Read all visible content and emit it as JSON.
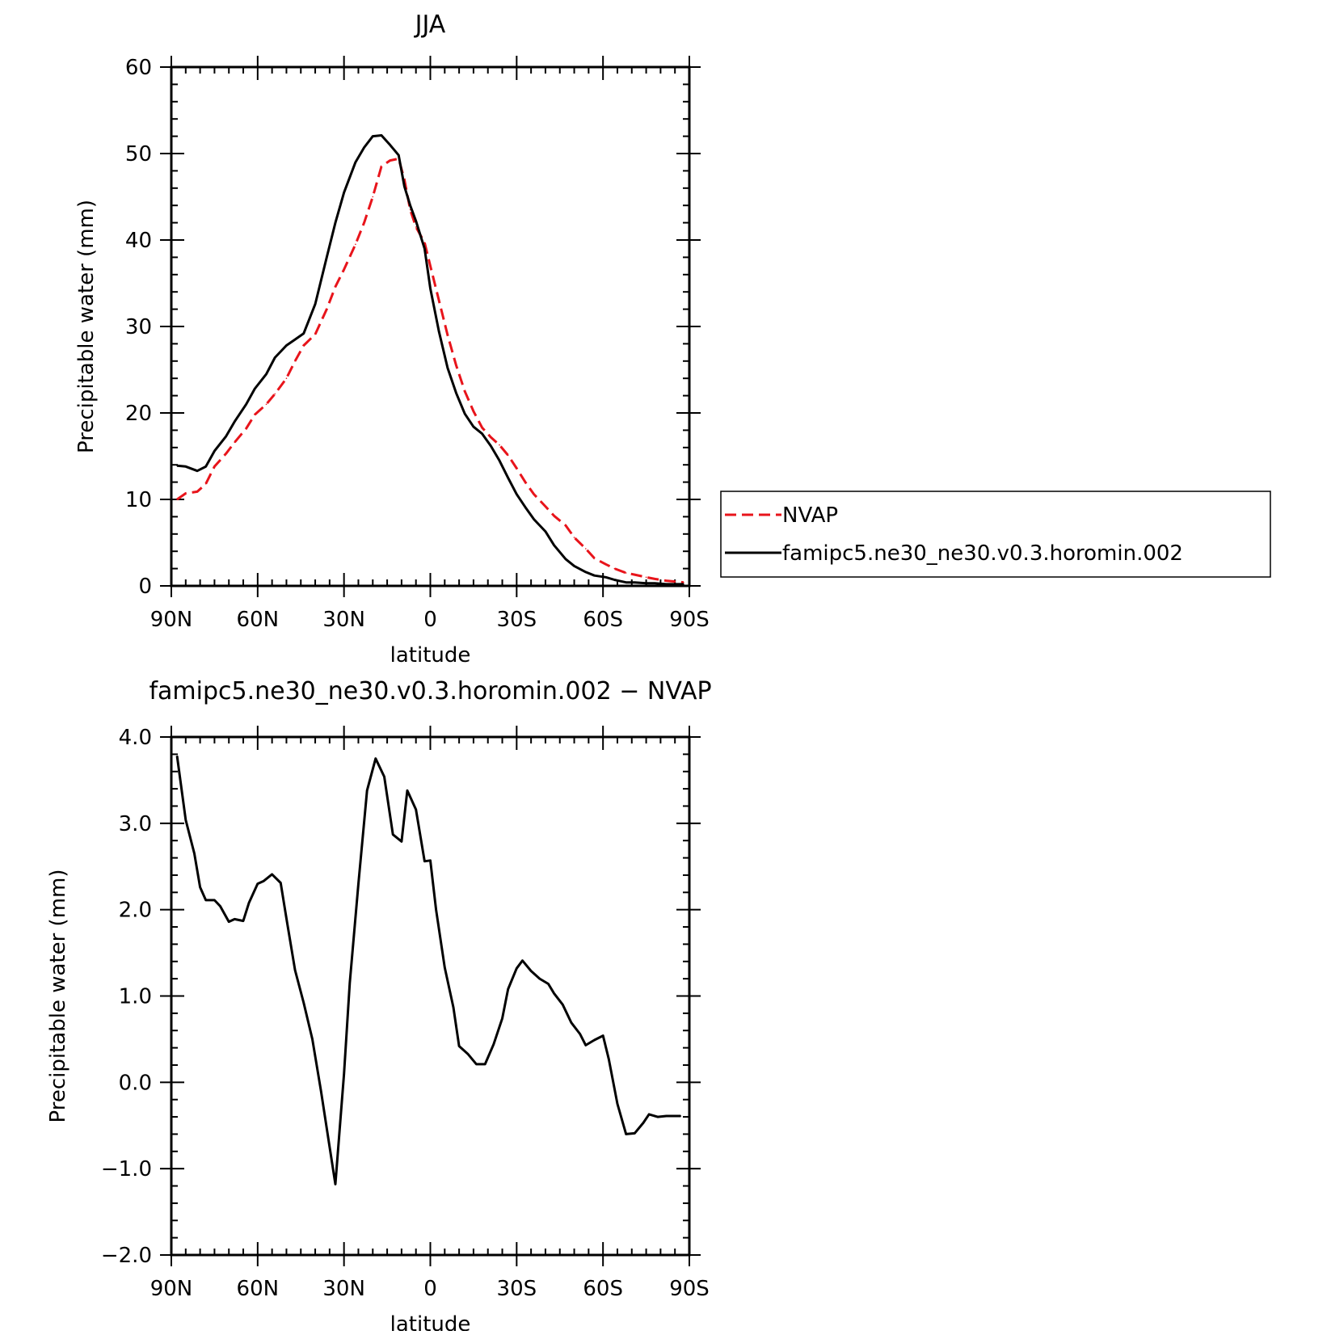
{
  "chart_data": [
    {
      "type": "line",
      "title": "JJA",
      "xlabel": "latitude",
      "ylabel": "Precipitable water (mm)",
      "xlim": [
        90,
        -90
      ],
      "ylim": [
        0,
        60
      ],
      "x_ticks": [
        90,
        60,
        30,
        0,
        -30,
        -60,
        -90
      ],
      "x_tick_labels": [
        "90N",
        "60N",
        "30N",
        "0",
        "30S",
        "60S",
        "90S"
      ],
      "y_ticks": [
        0,
        10,
        20,
        30,
        40,
        50,
        60
      ],
      "y_tick_labels": [
        "0",
        "10",
        "20",
        "30",
        "40",
        "50",
        "60"
      ],
      "legend_position": "right",
      "series": [
        {
          "name": "NVAP",
          "color": "#e8141b",
          "style": "dashed",
          "x": [
            88,
            85,
            81,
            78,
            75,
            71,
            68,
            64,
            61,
            57,
            54,
            50,
            47,
            44,
            40,
            36,
            33,
            30,
            26,
            23,
            20,
            17,
            14,
            11,
            9,
            7,
            5,
            2,
            0,
            -3,
            -6,
            -9,
            -12,
            -15,
            -18,
            -21,
            -24,
            -27,
            -30,
            -33,
            -36,
            -40,
            -43,
            -47,
            -50,
            -54,
            -57,
            -61,
            -64,
            -68,
            -71,
            -75,
            -78,
            -82,
            -85,
            -88
          ],
          "values": [
            10.0,
            10.7,
            10.9,
            11.8,
            13.8,
            15.3,
            16.6,
            18.2,
            19.8,
            21.0,
            22.2,
            24.0,
            26.0,
            27.8,
            29.1,
            32.0,
            34.6,
            36.6,
            39.5,
            42.0,
            45.0,
            48.5,
            49.2,
            49.4,
            47.0,
            43.5,
            41.5,
            39.7,
            37.0,
            33.0,
            29.0,
            25.5,
            22.5,
            20.2,
            18.3,
            17.2,
            16.3,
            15.1,
            13.6,
            12.0,
            10.6,
            9.2,
            8.1,
            7.0,
            5.6,
            4.3,
            3.2,
            2.5,
            2.0,
            1.5,
            1.3,
            1.0,
            0.8,
            0.6,
            0.5,
            0.4
          ]
        },
        {
          "name": "famipc5.ne30_ne30.v0.3.horomin.002",
          "color": "#000000",
          "style": "solid",
          "x": [
            88,
            85,
            81,
            78,
            75,
            71,
            68,
            64,
            61,
            57,
            54,
            50,
            47,
            44,
            40,
            36,
            33,
            30,
            26,
            23,
            20,
            17,
            14,
            11,
            9,
            7,
            5,
            2,
            0,
            -3,
            -6,
            -9,
            -12,
            -15,
            -18,
            -21,
            -24,
            -27,
            -30,
            -33,
            -36,
            -40,
            -43,
            -47,
            -50,
            -54,
            -57,
            -61,
            -64,
            -68,
            -71,
            -75,
            -78,
            -82,
            -85,
            -88
          ],
          "values": [
            13.9,
            13.8,
            13.3,
            13.8,
            15.6,
            17.3,
            19.0,
            21.0,
            22.8,
            24.5,
            26.4,
            27.8,
            28.5,
            29.2,
            32.6,
            38.0,
            42.0,
            45.5,
            49.0,
            50.7,
            52.0,
            52.1,
            51.0,
            49.8,
            46.2,
            44.0,
            42.2,
            39.0,
            34.4,
            29.4,
            25.2,
            22.3,
            19.9,
            18.4,
            17.6,
            16.2,
            14.5,
            12.5,
            10.6,
            9.1,
            7.7,
            6.3,
            4.7,
            3.1,
            2.3,
            1.6,
            1.2,
            1.0,
            0.7,
            0.4,
            0.4,
            0.3,
            0.3,
            0.2,
            0.2,
            0.2
          ]
        }
      ]
    },
    {
      "type": "line",
      "title": "famipc5.ne30_ne30.v0.3.horomin.002 − NVAP",
      "xlabel": "latitude",
      "ylabel": "Precipitable water (mm)",
      "xlim": [
        90,
        -90
      ],
      "ylim": [
        -2.0,
        4.0
      ],
      "x_ticks": [
        90,
        60,
        30,
        0,
        -30,
        -60,
        -90
      ],
      "x_tick_labels": [
        "90N",
        "60N",
        "30N",
        "0",
        "30S",
        "60S",
        "90S"
      ],
      "y_ticks": [
        -2.0,
        -1.0,
        0.0,
        1.0,
        2.0,
        3.0,
        4.0
      ],
      "y_tick_labels": [
        "−2.0",
        "−1.0",
        "0.0",
        "1.0",
        "2.0",
        "3.0",
        "4.0"
      ],
      "series": [
        {
          "color": "#000000",
          "style": "solid",
          "x": [
            88,
            85,
            82,
            80,
            78,
            75,
            73,
            70,
            68,
            65,
            63,
            60,
            58,
            55,
            52,
            50,
            47,
            44,
            41,
            38,
            35,
            33,
            30,
            28,
            25,
            22,
            19,
            16,
            13,
            10,
            8,
            5,
            2,
            0,
            -2,
            -5,
            -8,
            -10,
            -13,
            -16,
            -19,
            -22,
            -25,
            -27,
            -30,
            -32,
            -35,
            -38,
            -41,
            -43,
            -46,
            -49,
            -52,
            -54,
            -57,
            -60,
            -62,
            -65,
            -68,
            -71,
            -74,
            -76,
            -79,
            -82,
            -84,
            -87
          ],
          "values": [
            3.78,
            3.04,
            2.65,
            2.26,
            2.11,
            2.11,
            2.04,
            1.86,
            1.89,
            1.87,
            2.08,
            2.3,
            2.33,
            2.41,
            2.31,
            1.9,
            1.3,
            0.92,
            0.5,
            -0.1,
            -0.75,
            -1.18,
            0.1,
            1.15,
            2.3,
            3.38,
            3.75,
            3.54,
            2.87,
            2.79,
            3.38,
            3.16,
            2.56,
            2.57,
            2.0,
            1.33,
            0.87,
            0.42,
            0.33,
            0.21,
            0.21,
            0.44,
            0.74,
            1.08,
            1.32,
            1.41,
            1.29,
            1.2,
            1.14,
            1.03,
            0.9,
            0.69,
            0.56,
            0.43,
            0.49,
            0.54,
            0.27,
            -0.25,
            -0.6,
            -0.59,
            -0.47,
            -0.37,
            -0.4,
            -0.39,
            -0.39,
            -0.39
          ]
        }
      ]
    }
  ]
}
